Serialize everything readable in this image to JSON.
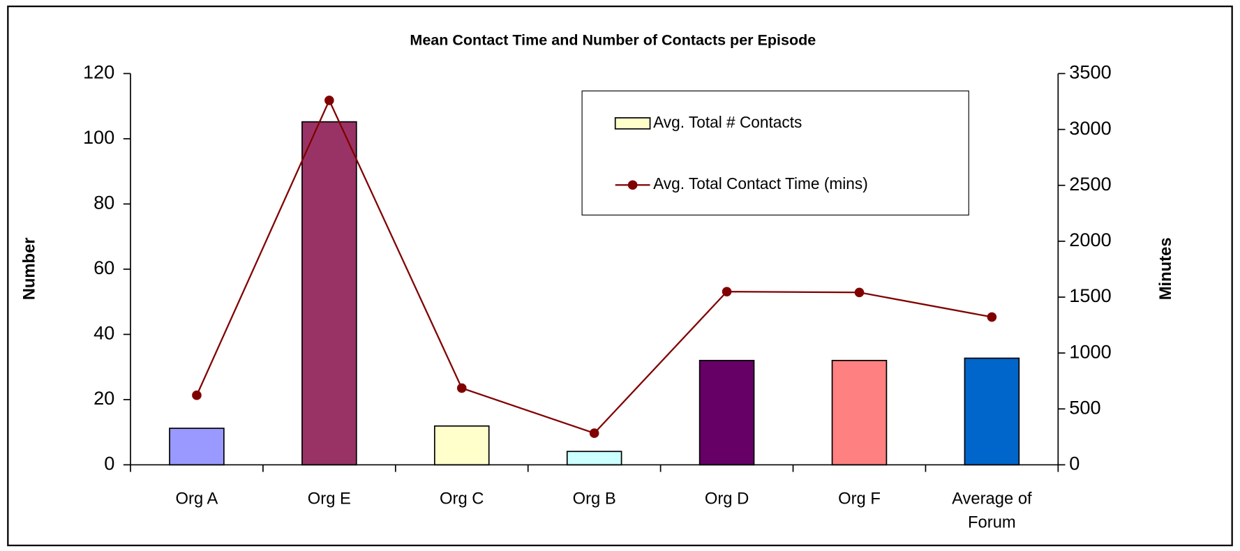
{
  "chart_data": {
    "type": "bar_line",
    "title": "Mean Contact Time and Number of Contacts per Episode",
    "ylabel": "Number",
    "y2label": "Minutes",
    "categories": [
      "Org A",
      "Org E",
      "Org C",
      "Org B",
      "Org D",
      "Org F",
      "Average of Forum"
    ],
    "series": [
      {
        "name": "Avg. Total # Contacts",
        "type": "bar",
        "color": "#ffffcc",
        "colors": [
          "#9999ff",
          "#993366",
          "#ffffcc",
          "#ccffff",
          "#660066",
          "#ff8080",
          "#0066cc"
        ],
        "values": [
          11.2,
          105.2,
          11.9,
          4.1,
          32,
          32,
          32.7
        ]
      },
      {
        "name": "Avg. Total Contact Time (mins)",
        "type": "line",
        "axis": "y2",
        "color": "#800000",
        "values": [
          622,
          3260,
          686,
          283,
          1549,
          1542,
          1322
        ]
      }
    ],
    "ylim": [
      0,
      120
    ],
    "yticks": [
      0,
      20,
      40,
      60,
      80,
      100,
      120
    ],
    "y2lim": [
      0,
      3500
    ],
    "y2ticks": [
      0,
      500,
      1000,
      1500,
      2000,
      2500,
      3000,
      3500
    ],
    "legend": "upper right",
    "grid": false
  }
}
